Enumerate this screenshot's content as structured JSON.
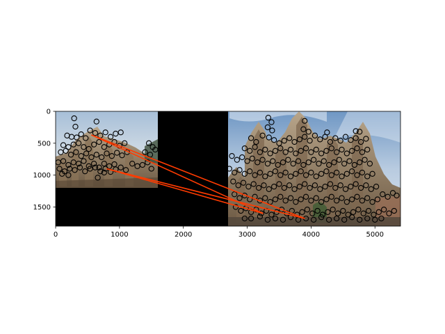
{
  "chart_data": {
    "type": "scatter",
    "title": "",
    "xlabel": "",
    "ylabel": "",
    "xlim": [
      0,
      5400
    ],
    "ylim": [
      1800,
      0
    ],
    "y_inverted": true,
    "grid": false,
    "legend": "none",
    "xticks": [
      "0",
      "1000",
      "2000",
      "3000",
      "4000",
      "5000"
    ],
    "xtick_values": [
      0,
      1000,
      2000,
      3000,
      4000,
      5000
    ],
    "yticks": [
      "0",
      "500",
      "1000",
      "1500"
    ],
    "ytick_values": [
      0,
      500,
      1000,
      1500
    ],
    "background_images": [
      {
        "name": "left-photo",
        "x_range": [
          0,
          1600
        ],
        "y_range": [
          0,
          1200
        ]
      },
      {
        "name": "right-photo",
        "x_range": [
          2700,
          5400
        ],
        "y_range": [
          0,
          1800
        ]
      }
    ],
    "colors": {
      "keypoint": "#000000",
      "match_line": "#ff3b00",
      "padding": "#000000"
    },
    "keypoints": [
      [
        290,
        110
      ],
      [
        640,
        160
      ],
      [
        310,
        240
      ],
      [
        180,
        380
      ],
      [
        250,
        400
      ],
      [
        330,
        410
      ],
      [
        400,
        360
      ],
      [
        470,
        420
      ],
      [
        540,
        300
      ],
      [
        620,
        340
      ],
      [
        700,
        380
      ],
      [
        780,
        330
      ],
      [
        860,
        400
      ],
      [
        940,
        350
      ],
      [
        1020,
        330
      ],
      [
        120,
        530
      ],
      [
        200,
        560
      ],
      [
        280,
        520
      ],
      [
        360,
        500
      ],
      [
        440,
        560
      ],
      [
        520,
        590
      ],
      [
        600,
        520
      ],
      [
        680,
        480
      ],
      [
        760,
        560
      ],
      [
        840,
        520
      ],
      [
        920,
        480
      ],
      [
        1000,
        540
      ],
      [
        1080,
        500
      ],
      [
        1460,
        500
      ],
      [
        1520,
        560
      ],
      [
        80,
        640
      ],
      [
        160,
        620
      ],
      [
        240,
        680
      ],
      [
        320,
        640
      ],
      [
        400,
        700
      ],
      [
        480,
        660
      ],
      [
        560,
        720
      ],
      [
        640,
        680
      ],
      [
        720,
        720
      ],
      [
        800,
        660
      ],
      [
        880,
        700
      ],
      [
        960,
        650
      ],
      [
        1040,
        690
      ],
      [
        1120,
        640
      ],
      [
        1400,
        640
      ],
      [
        1480,
        680
      ],
      [
        40,
        800
      ],
      [
        120,
        780
      ],
      [
        200,
        840
      ],
      [
        280,
        800
      ],
      [
        360,
        820
      ],
      [
        440,
        780
      ],
      [
        520,
        860
      ],
      [
        600,
        820
      ],
      [
        680,
        880
      ],
      [
        760,
        820
      ],
      [
        840,
        860
      ],
      [
        920,
        830
      ],
      [
        1200,
        820
      ],
      [
        1280,
        860
      ],
      [
        1360,
        840
      ],
      [
        1440,
        800
      ],
      [
        60,
        900
      ],
      [
        140,
        940
      ],
      [
        220,
        900
      ],
      [
        300,
        920
      ],
      [
        380,
        880
      ],
      [
        460,
        940
      ],
      [
        540,
        900
      ],
      [
        620,
        880
      ],
      [
        700,
        940
      ],
      [
        780,
        900
      ],
      [
        860,
        950
      ],
      [
        940,
        910
      ],
      [
        1020,
        880
      ],
      [
        1100,
        920
      ],
      [
        1500,
        900
      ],
      [
        100,
        980
      ],
      [
        200,
        1000
      ],
      [
        660,
        1040
      ],
      [
        760,
        960
      ],
      [
        1560,
        600
      ],
      [
        3330,
        100
      ],
      [
        3380,
        170
      ],
      [
        3900,
        150
      ],
      [
        3320,
        250
      ],
      [
        3390,
        300
      ],
      [
        3880,
        280
      ],
      [
        3960,
        320
      ],
      [
        4250,
        330
      ],
      [
        4700,
        310
      ],
      [
        4760,
        320
      ],
      [
        3060,
        420
      ],
      [
        3140,
        480
      ],
      [
        3240,
        380
      ],
      [
        3340,
        410
      ],
      [
        3420,
        450
      ],
      [
        3500,
        500
      ],
      [
        3580,
        460
      ],
      [
        3660,
        420
      ],
      [
        3740,
        480
      ],
      [
        3820,
        440
      ],
      [
        3900,
        400
      ],
      [
        3980,
        460
      ],
      [
        4060,
        380
      ],
      [
        4140,
        440
      ],
      [
        4220,
        400
      ],
      [
        4300,
        480
      ],
      [
        4380,
        420
      ],
      [
        4460,
        460
      ],
      [
        4540,
        400
      ],
      [
        4620,
        450
      ],
      [
        4700,
        420
      ],
      [
        4780,
        480
      ],
      [
        4860,
        430
      ],
      [
        2960,
        580
      ],
      [
        3040,
        620
      ],
      [
        3120,
        560
      ],
      [
        3200,
        640
      ],
      [
        3280,
        600
      ],
      [
        3360,
        660
      ],
      [
        3440,
        620
      ],
      [
        3520,
        580
      ],
      [
        3600,
        640
      ],
      [
        3680,
        600
      ],
      [
        3760,
        660
      ],
      [
        3840,
        620
      ],
      [
        3920,
        580
      ],
      [
        4000,
        640
      ],
      [
        4080,
        600
      ],
      [
        4160,
        660
      ],
      [
        4240,
        620
      ],
      [
        4320,
        580
      ],
      [
        4400,
        640
      ],
      [
        4480,
        600
      ],
      [
        4560,
        660
      ],
      [
        4640,
        620
      ],
      [
        4720,
        580
      ],
      [
        4800,
        640
      ],
      [
        4880,
        600
      ],
      [
        2760,
        700
      ],
      [
        2840,
        760
      ],
      [
        2920,
        720
      ],
      [
        3000,
        780
      ],
      [
        3080,
        740
      ],
      [
        3160,
        800
      ],
      [
        3240,
        760
      ],
      [
        3320,
        820
      ],
      [
        3400,
        780
      ],
      [
        3480,
        840
      ],
      [
        3560,
        800
      ],
      [
        3640,
        760
      ],
      [
        3720,
        820
      ],
      [
        3800,
        780
      ],
      [
        3880,
        840
      ],
      [
        3960,
        800
      ],
      [
        4040,
        760
      ],
      [
        4120,
        820
      ],
      [
        4200,
        780
      ],
      [
        4280,
        840
      ],
      [
        4360,
        800
      ],
      [
        4440,
        760
      ],
      [
        4520,
        820
      ],
      [
        4600,
        780
      ],
      [
        4680,
        840
      ],
      [
        4760,
        800
      ],
      [
        4840,
        760
      ],
      [
        4920,
        820
      ],
      [
        2720,
        900
      ],
      [
        2800,
        960
      ],
      [
        2880,
        920
      ],
      [
        2960,
        980
      ],
      [
        3040,
        940
      ],
      [
        3120,
        1000
      ],
      [
        3200,
        960
      ],
      [
        3280,
        1020
      ],
      [
        3360,
        980
      ],
      [
        3440,
        940
      ],
      [
        3520,
        1000
      ],
      [
        3600,
        960
      ],
      [
        3680,
        1020
      ],
      [
        3760,
        980
      ],
      [
        3840,
        940
      ],
      [
        3920,
        1000
      ],
      [
        4000,
        960
      ],
      [
        4080,
        1020
      ],
      [
        4160,
        980
      ],
      [
        4240,
        940
      ],
      [
        4320,
        1000
      ],
      [
        4400,
        960
      ],
      [
        4480,
        1020
      ],
      [
        4560,
        980
      ],
      [
        4640,
        940
      ],
      [
        4720,
        1000
      ],
      [
        4800,
        960
      ],
      [
        4880,
        1020
      ],
      [
        4960,
        980
      ],
      [
        2780,
        1100
      ],
      [
        2860,
        1160
      ],
      [
        2940,
        1120
      ],
      [
        3020,
        1180
      ],
      [
        3100,
        1140
      ],
      [
        3180,
        1200
      ],
      [
        3260,
        1160
      ],
      [
        3340,
        1220
      ],
      [
        3420,
        1180
      ],
      [
        3500,
        1140
      ],
      [
        3580,
        1200
      ],
      [
        3660,
        1160
      ],
      [
        3740,
        1220
      ],
      [
        3820,
        1180
      ],
      [
        3900,
        1140
      ],
      [
        3980,
        1200
      ],
      [
        4060,
        1160
      ],
      [
        4140,
        1220
      ],
      [
        4220,
        1180
      ],
      [
        4300,
        1140
      ],
      [
        4380,
        1200
      ],
      [
        4460,
        1160
      ],
      [
        4540,
        1220
      ],
      [
        4620,
        1180
      ],
      [
        4700,
        1140
      ],
      [
        4780,
        1200
      ],
      [
        4860,
        1160
      ],
      [
        4940,
        1220
      ],
      [
        5020,
        1180
      ],
      [
        2800,
        1300
      ],
      [
        2880,
        1360
      ],
      [
        2960,
        1320
      ],
      [
        3040,
        1380
      ],
      [
        3120,
        1340
      ],
      [
        3200,
        1400
      ],
      [
        3280,
        1360
      ],
      [
        3360,
        1420
      ],
      [
        3440,
        1380
      ],
      [
        3520,
        1340
      ],
      [
        3600,
        1400
      ],
      [
        3680,
        1360
      ],
      [
        3760,
        1420
      ],
      [
        3840,
        1380
      ],
      [
        3920,
        1340
      ],
      [
        4000,
        1400
      ],
      [
        4080,
        1360
      ],
      [
        4160,
        1420
      ],
      [
        4240,
        1380
      ],
      [
        4320,
        1340
      ],
      [
        4400,
        1400
      ],
      [
        4480,
        1360
      ],
      [
        4560,
        1420
      ],
      [
        4640,
        1380
      ],
      [
        4720,
        1340
      ],
      [
        4800,
        1400
      ],
      [
        4880,
        1360
      ],
      [
        4960,
        1420
      ],
      [
        5040,
        1380
      ],
      [
        5120,
        1300
      ],
      [
        5200,
        1340
      ],
      [
        5280,
        1280
      ],
      [
        5340,
        1320
      ],
      [
        2820,
        1500
      ],
      [
        2900,
        1560
      ],
      [
        2980,
        1520
      ],
      [
        3060,
        1580
      ],
      [
        3140,
        1540
      ],
      [
        3220,
        1600
      ],
      [
        3300,
        1560
      ],
      [
        3380,
        1620
      ],
      [
        3460,
        1580
      ],
      [
        3540,
        1540
      ],
      [
        3620,
        1600
      ],
      [
        3700,
        1560
      ],
      [
        3780,
        1620
      ],
      [
        3860,
        1580
      ],
      [
        3940,
        1540
      ],
      [
        4020,
        1600
      ],
      [
        4100,
        1560
      ],
      [
        4180,
        1620
      ],
      [
        4260,
        1580
      ],
      [
        4340,
        1540
      ],
      [
        4420,
        1600
      ],
      [
        4500,
        1560
      ],
      [
        4580,
        1620
      ],
      [
        4660,
        1580
      ],
      [
        4740,
        1540
      ],
      [
        4820,
        1600
      ],
      [
        4900,
        1560
      ],
      [
        4980,
        1620
      ],
      [
        5060,
        1580
      ],
      [
        5140,
        1540
      ],
      [
        5220,
        1600
      ],
      [
        5300,
        1560
      ],
      [
        2960,
        1680
      ],
      [
        3060,
        1680
      ],
      [
        3200,
        1650
      ],
      [
        3320,
        1700
      ],
      [
        3440,
        1680
      ],
      [
        3560,
        1700
      ],
      [
        3680,
        1660
      ],
      [
        3800,
        1700
      ],
      [
        3920,
        1680
      ],
      [
        4040,
        1700
      ],
      [
        4160,
        1660
      ],
      [
        4280,
        1700
      ],
      [
        4400,
        1680
      ],
      [
        4520,
        1700
      ],
      [
        4640,
        1660
      ],
      [
        4760,
        1700
      ],
      [
        4880,
        1680
      ],
      [
        5000,
        1700
      ],
      [
        5100,
        1680
      ]
    ],
    "matches": [
      {
        "x": [
          560,
          3900
        ],
        "y": [
          370,
          1680
        ]
      },
      {
        "x": [
          560,
          3250
        ],
        "y": [
          370,
          1600
        ]
      },
      {
        "x": [
          800,
          3900
        ],
        "y": [
          900,
          1680
        ]
      },
      {
        "x": [
          800,
          3250
        ],
        "y": [
          900,
          1600
        ]
      }
    ]
  }
}
